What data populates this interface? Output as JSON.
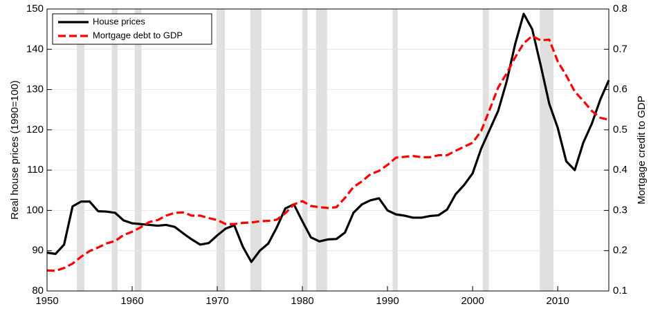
{
  "chart_data": {
    "type": "line",
    "x": [
      1950,
      1951,
      1952,
      1953,
      1954,
      1955,
      1956,
      1957,
      1958,
      1959,
      1960,
      1961,
      1962,
      1963,
      1964,
      1965,
      1966,
      1967,
      1968,
      1969,
      1970,
      1971,
      1972,
      1973,
      1974,
      1975,
      1976,
      1977,
      1978,
      1979,
      1980,
      1981,
      1982,
      1983,
      1984,
      1985,
      1986,
      1987,
      1988,
      1989,
      1990,
      1991,
      1992,
      1993,
      1994,
      1995,
      1996,
      1997,
      1998,
      1999,
      2000,
      2001,
      2002,
      2003,
      2004,
      2005,
      2006,
      2007,
      2008,
      2009,
      2010,
      2011,
      2012,
      2013,
      2014,
      2015,
      2016
    ],
    "series": [
      {
        "name": "House prices",
        "color": "#000000",
        "dash": "solid",
        "values": [
          89.5,
          89.2,
          91.5,
          101,
          102.2,
          102.2,
          99.8,
          99.7,
          99.4,
          97.5,
          96.8,
          96.6,
          96.4,
          96.2,
          96.4,
          95.9,
          94.3,
          92.8,
          91.5,
          91.9,
          93.8,
          95.5,
          96.3,
          91,
          87.2,
          90,
          91.8,
          95.8,
          100.5,
          101.5,
          97.3,
          93.3,
          92.3,
          92.8,
          92.9,
          94.5,
          99.4,
          101.5,
          102.5,
          103,
          100,
          99,
          98.7,
          98.2,
          98.2,
          98.6,
          98.8,
          100.2,
          104,
          106.3,
          109.2,
          115.3,
          120,
          124.7,
          132,
          141.3,
          148.8,
          145,
          136,
          126.5,
          120.5,
          112.2,
          110,
          116.8,
          121.5,
          127.5,
          132.3
        ]
      },
      {
        "name": "Mortgage debt to GDP",
        "color": "#ff0000",
        "dash": "dashed",
        "axis": "y2",
        "values": [
          0.151,
          0.15,
          0.157,
          0.168,
          0.185,
          0.199,
          0.208,
          0.218,
          0.224,
          0.239,
          0.247,
          0.258,
          0.271,
          0.276,
          0.287,
          0.294,
          0.295,
          0.287,
          0.287,
          0.281,
          0.276,
          0.266,
          0.266,
          0.269,
          0.27,
          0.273,
          0.274,
          0.277,
          0.293,
          0.315,
          0.323,
          0.311,
          0.308,
          0.306,
          0.308,
          0.331,
          0.358,
          0.372,
          0.39,
          0.398,
          0.413,
          0.431,
          0.433,
          0.435,
          0.432,
          0.432,
          0.437,
          0.437,
          0.448,
          0.458,
          0.468,
          0.497,
          0.55,
          0.605,
          0.64,
          0.68,
          0.715,
          0.733,
          0.722,
          0.724,
          0.67,
          0.635,
          0.595,
          0.572,
          0.547,
          0.53,
          0.525
        ]
      }
    ],
    "recessions": [
      [
        1953.5,
        1954.4
      ],
      [
        1957.6,
        1958.3
      ],
      [
        1960.3,
        1961.1
      ],
      [
        1969.9,
        1970.9
      ],
      [
        1973.9,
        1975.2
      ],
      [
        1980.0,
        1980.6
      ],
      [
        1981.6,
        1982.9
      ],
      [
        1990.6,
        1991.2
      ],
      [
        2001.2,
        2001.9
      ],
      [
        2007.9,
        2009.5
      ]
    ],
    "recession_color": "#e0e0e0",
    "ylabel": "Real house prices (1990=100)",
    "y2label": "Mortgage credit to GDP",
    "xlim": [
      1950,
      2016
    ],
    "xticks": [
      1950,
      1960,
      1970,
      1980,
      1990,
      2000,
      2010
    ],
    "ylim": [
      80,
      150
    ],
    "yticks": [
      80,
      90,
      100,
      110,
      120,
      130,
      140,
      150
    ],
    "y2lim": [
      0.1,
      0.8
    ],
    "y2ticks": [
      0.1,
      0.2,
      0.3,
      0.4,
      0.5,
      0.6,
      0.7,
      0.8
    ],
    "grid": true,
    "legend": "upper left"
  }
}
